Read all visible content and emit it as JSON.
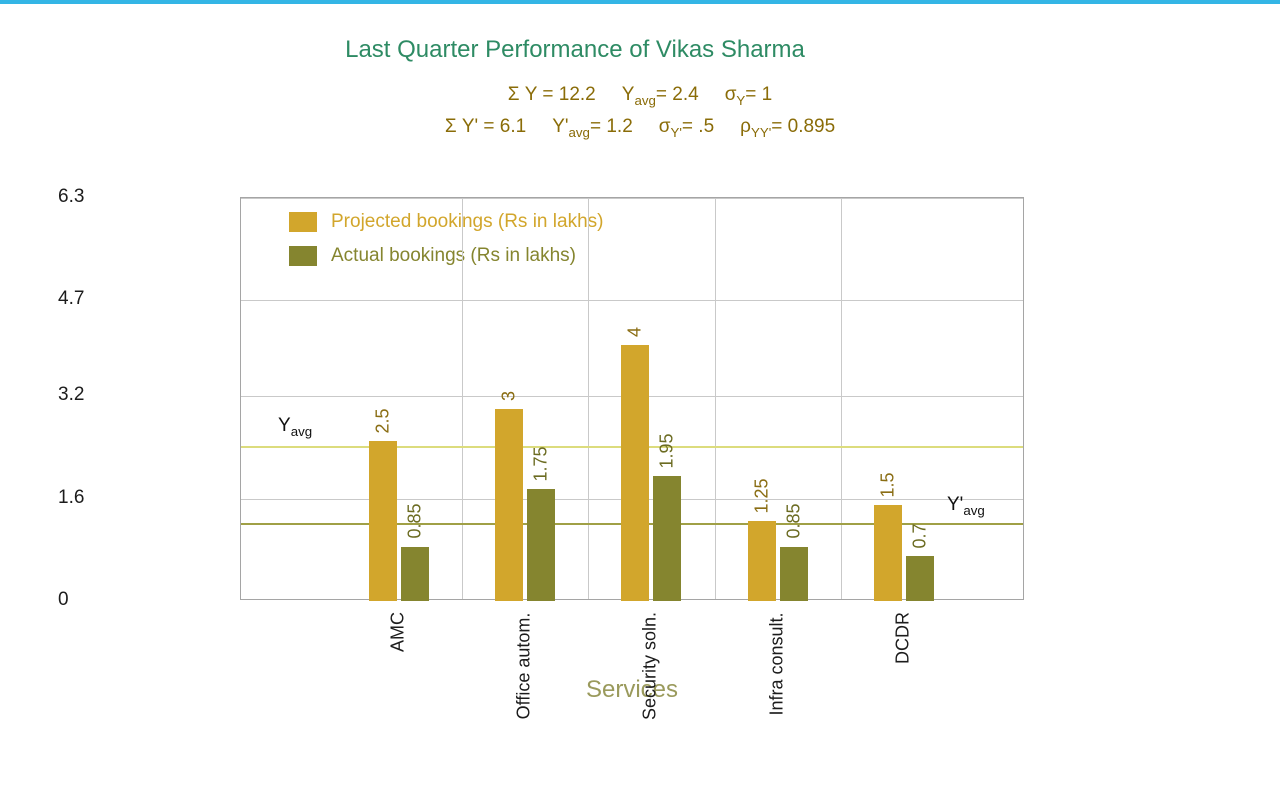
{
  "window": {
    "top_accent_color": "#33b5e5",
    "background": "#ffffff"
  },
  "header": {
    "title": "Last Quarter Performance of Vikas Sharma",
    "title_color": "#2e8b64",
    "stats_color": "#8a6c08",
    "stats_line1": [
      {
        "pre": "Σ Y = 12.2",
        "sub": "",
        "post": ""
      },
      {
        "pre": "Y",
        "sub": "avg",
        "post": "= 2.4"
      },
      {
        "pre": "σ",
        "sub": "Y",
        "post": "= 1"
      }
    ],
    "stats_line2": [
      {
        "pre": "Σ Y' = 6.1",
        "sub": "",
        "post": ""
      },
      {
        "pre": "Y'",
        "sub": "avg",
        "post": "= 1.2"
      },
      {
        "pre": "σ",
        "sub": "Y'",
        "post": "= .5"
      },
      {
        "pre": "ρ",
        "sub": "YY'",
        "post": "= 0.895"
      }
    ]
  },
  "chart_data": {
    "type": "bar",
    "title": "Last Quarter Performance of Vikas Sharma",
    "categories": [
      "AMC",
      "Office autom.",
      "Security soln.",
      "Infra consult.",
      "DCDR"
    ],
    "series": [
      {
        "name": "Projected bookings (Rs in lakhs)",
        "values": [
          2.5,
          3,
          4,
          1.25,
          1.5
        ],
        "color": "#d2a62c",
        "value_label_color": "#8a6d13"
      },
      {
        "name": "Actual bookings (Rs in lakhs)",
        "values": [
          0.85,
          1.75,
          1.95,
          0.85,
          0.7
        ],
        "color": "#85852f",
        "value_label_color": "#6b6b21"
      }
    ],
    "xlabel": "Services",
    "xlabel_color": "#9a9a5c",
    "ylabel": "",
    "ylim": [
      0,
      6.3
    ],
    "yticks": [
      0,
      1.6,
      3.2,
      4.7,
      6.3
    ],
    "grid": true,
    "grid_color": "#c9c9c9",
    "axis_text_color": "#1c1c1c",
    "legend_position": "top-left-inside",
    "reference_lines": [
      {
        "name": "Y",
        "sub": "avg",
        "value": 2.4,
        "color": "#dcdc7d",
        "label_side": "left"
      },
      {
        "name": "Y'",
        "sub": "avg",
        "value": 1.2,
        "color": "#a0a046",
        "label_side": "right"
      }
    ]
  }
}
